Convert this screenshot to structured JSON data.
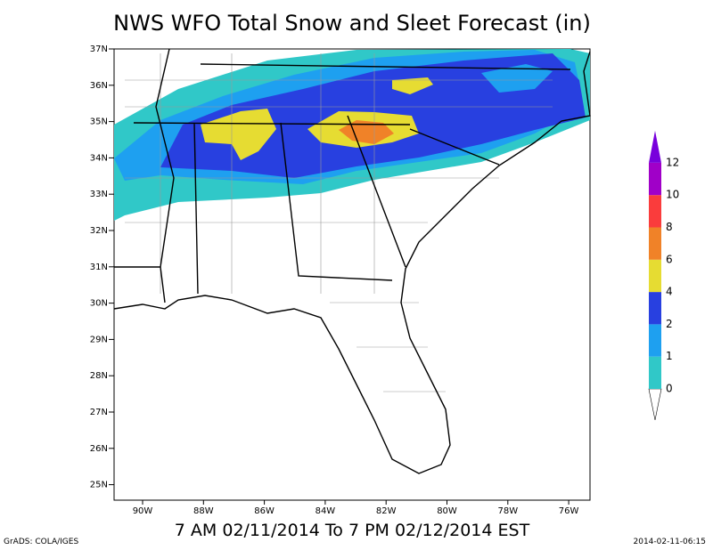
{
  "title": "NWS WFO Total Snow and Sleet Forecast (in)",
  "lat_labels": [
    "37N",
    "36N",
    "35N",
    "34N",
    "33N",
    "32N",
    "31N",
    "30N",
    "29N",
    "28N",
    "27N",
    "26N",
    "25N"
  ],
  "lon_labels": [
    "90W",
    "88W",
    "86W",
    "84W",
    "82W",
    "80W",
    "78W",
    "76W"
  ],
  "colorbar": {
    "levels": [
      0,
      1,
      2,
      4,
      6,
      8,
      10,
      12
    ],
    "colors": [
      "#30c8c8",
      "#1ea0f0",
      "#2840e0",
      "#e6dc32",
      "#f08228",
      "#fa3c3c",
      "#a000c8",
      "#7800dc"
    ]
  },
  "footer": {
    "time_range": "7 AM 02/11/2014 To 7 PM 02/12/2014 EST",
    "credit": "GrADS: COLA/IGES",
    "timestamp": "2014-02-11-06:15"
  }
}
